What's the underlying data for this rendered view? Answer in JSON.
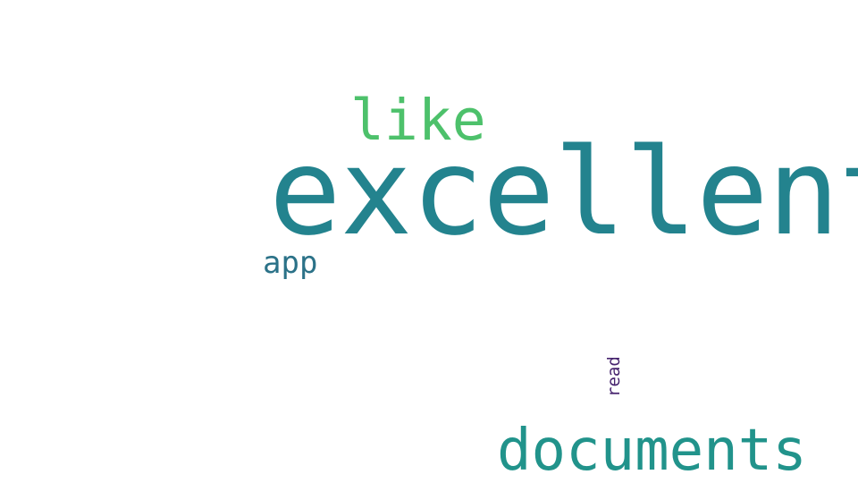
{
  "words": [
    {
      "text": "excellent",
      "color": "#23838e"
    },
    {
      "text": "like",
      "color": "#4dc16b"
    },
    {
      "text": "documents",
      "color": "#21938b"
    },
    {
      "text": "app",
      "color": "#2b7288"
    },
    {
      "text": "read",
      "color": "#46236e"
    }
  ]
}
